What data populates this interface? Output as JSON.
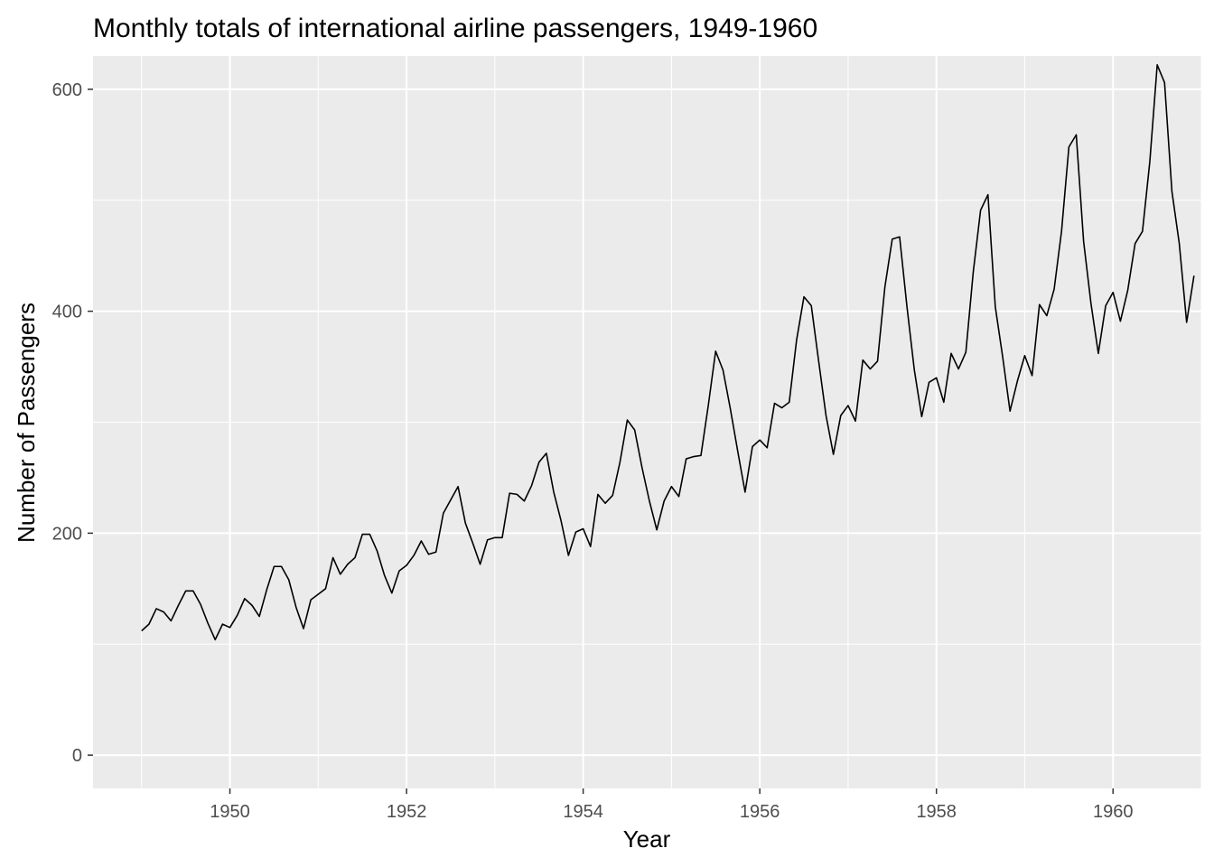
{
  "chart_data": {
    "type": "line",
    "title": "Monthly totals of international airline passengers, 1949-1960",
    "xlabel": "Year",
    "ylabel": "Number of Passengers",
    "xlim": [
      1948.45,
      1961.0
    ],
    "ylim": [
      -30,
      630
    ],
    "x_major_ticks": [
      1950,
      1952,
      1954,
      1956,
      1958,
      1960
    ],
    "x_minor_ticks": [
      1949,
      1951,
      1953,
      1955,
      1957,
      1959,
      1961
    ],
    "y_major_ticks": [
      0,
      200,
      400,
      600
    ],
    "y_minor_ticks": [
      100,
      300,
      500
    ],
    "x_tick_labels": [
      "1950",
      "1952",
      "1954",
      "1956",
      "1958",
      "1960"
    ],
    "y_tick_labels": [
      "0",
      "200",
      "400",
      "600"
    ],
    "grid": true,
    "legend": "none",
    "start_year": 1949,
    "frequency": 12,
    "series": [
      {
        "values": [
          112,
          118,
          132,
          129,
          121,
          135,
          148,
          148,
          136,
          119,
          104,
          118,
          115,
          126,
          141,
          135,
          125,
          149,
          170,
          170,
          158,
          133,
          114,
          140,
          145,
          150,
          178,
          163,
          172,
          178,
          199,
          199,
          184,
          162,
          146,
          166,
          171,
          180,
          193,
          181,
          183,
          218,
          230,
          242,
          209,
          191,
          172,
          194,
          196,
          196,
          236,
          235,
          229,
          243,
          264,
          272,
          237,
          211,
          180,
          201,
          204,
          188,
          235,
          227,
          234,
          264,
          302,
          293,
          259,
          229,
          203,
          229,
          242,
          233,
          267,
          269,
          270,
          315,
          364,
          347,
          312,
          274,
          237,
          278,
          284,
          277,
          317,
          313,
          318,
          374,
          413,
          405,
          355,
          306,
          271,
          306,
          315,
          301,
          356,
          348,
          355,
          422,
          465,
          467,
          404,
          347,
          305,
          336,
          340,
          318,
          362,
          348,
          363,
          435,
          491,
          505,
          404,
          359,
          310,
          337,
          360,
          342,
          406,
          396,
          420,
          472,
          548,
          559,
          463,
          407,
          362,
          405,
          417,
          391,
          419,
          461,
          472,
          535,
          622,
          606,
          508,
          461,
          390,
          432
        ]
      }
    ]
  },
  "colors": {
    "panel_background": "#ebebeb",
    "grid_major": "#ffffff",
    "line": "#000000",
    "tick_text": "#4d4d4d"
  }
}
